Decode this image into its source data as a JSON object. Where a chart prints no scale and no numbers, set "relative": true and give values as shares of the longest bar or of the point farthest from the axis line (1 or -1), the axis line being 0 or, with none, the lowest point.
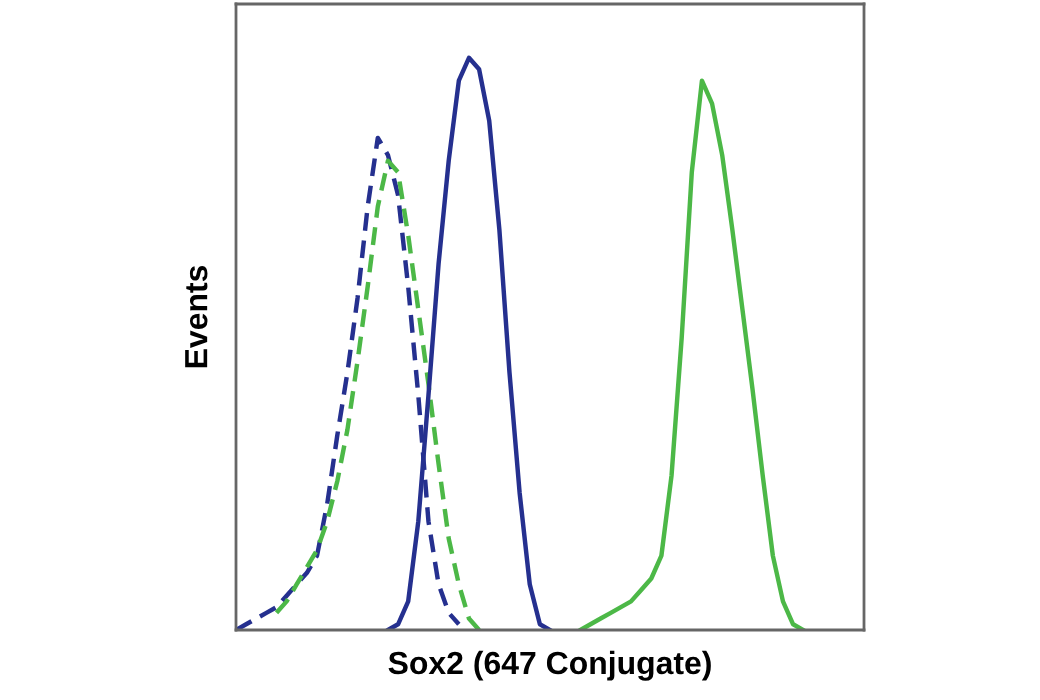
{
  "chart_data": {
    "type": "line",
    "relative": true,
    "xlabel": "Sox2 (647 Conjugate)",
    "ylabel": "Events",
    "grid": false,
    "legend": false,
    "marker": "none",
    "categories": [
      null,
      null,
      null,
      null,
      null,
      null,
      null,
      null,
      null,
      null,
      null,
      null,
      null,
      null,
      null,
      null,
      null,
      null,
      null,
      null,
      null,
      null,
      null,
      null,
      null,
      null,
      null,
      null,
      null,
      null,
      null,
      null,
      null,
      null,
      null,
      null,
      null,
      null,
      null,
      null,
      null,
      null,
      null,
      null,
      null,
      null,
      null,
      null,
      null,
      null,
      null,
      null,
      null,
      null,
      null,
      null,
      null,
      null,
      null,
      null,
      null,
      null,
      null
    ],
    "series": [
      {
        "color": "#25308f",
        "line_style": "dashed",
        "values": [
          0.0,
          0.01,
          0.02,
          0.03,
          0.04,
          0.06,
          0.08,
          0.1,
          0.13,
          0.22,
          0.34,
          0.45,
          0.58,
          0.74,
          0.86,
          0.83,
          0.76,
          0.6,
          0.41,
          0.19,
          0.08,
          0.03,
          0.01,
          null,
          null,
          null,
          null,
          null,
          null,
          null,
          null,
          null,
          null,
          null,
          null,
          null,
          null,
          null,
          null,
          null,
          null,
          null,
          null,
          null,
          null,
          null,
          null,
          null,
          null,
          null,
          null,
          null,
          null,
          null,
          null,
          null,
          null,
          null,
          null,
          null,
          null,
          null,
          null
        ]
      },
      {
        "color": "#4cb847",
        "line_style": "dashed",
        "values": [
          null,
          null,
          null,
          null,
          0.03,
          0.05,
          0.08,
          0.11,
          0.14,
          0.19,
          0.26,
          0.35,
          0.47,
          0.6,
          0.74,
          0.82,
          0.8,
          0.69,
          0.56,
          0.43,
          0.29,
          0.16,
          0.08,
          0.02,
          0.0,
          null,
          null,
          null,
          null,
          null,
          null,
          null,
          null,
          null,
          null,
          null,
          null,
          null,
          null,
          null,
          null,
          null,
          null,
          null,
          null,
          null,
          null,
          null,
          null,
          null,
          null,
          null,
          null,
          null,
          null,
          null,
          null,
          null,
          null,
          null,
          null,
          null,
          null
        ]
      },
      {
        "color": "#25308f",
        "line_style": "solid",
        "values": [
          null,
          null,
          null,
          null,
          null,
          null,
          null,
          null,
          null,
          null,
          null,
          null,
          null,
          null,
          null,
          0.0,
          0.01,
          0.05,
          0.19,
          0.41,
          0.64,
          0.82,
          0.96,
          1.0,
          0.98,
          0.89,
          0.7,
          0.45,
          0.24,
          0.08,
          0.01,
          0.0,
          null,
          null,
          null,
          null,
          null,
          null,
          null,
          null,
          null,
          null,
          null,
          null,
          null,
          null,
          null,
          null,
          null,
          null,
          null,
          null,
          null,
          null,
          null,
          null,
          null,
          null,
          null,
          null,
          null,
          null,
          null
        ]
      },
      {
        "color": "#4cb847",
        "line_style": "solid",
        "values": [
          null,
          null,
          null,
          null,
          null,
          null,
          null,
          null,
          null,
          null,
          null,
          null,
          null,
          null,
          null,
          null,
          null,
          null,
          null,
          null,
          null,
          null,
          null,
          null,
          null,
          null,
          null,
          null,
          null,
          null,
          null,
          null,
          null,
          null,
          0.0,
          0.01,
          0.02,
          0.03,
          0.04,
          0.05,
          0.07,
          0.09,
          0.13,
          0.27,
          0.51,
          0.8,
          0.96,
          0.92,
          0.83,
          0.7,
          0.56,
          0.42,
          0.27,
          0.13,
          0.05,
          0.01,
          0.0,
          null,
          null,
          null,
          null,
          null,
          null
        ]
      }
    ]
  }
}
